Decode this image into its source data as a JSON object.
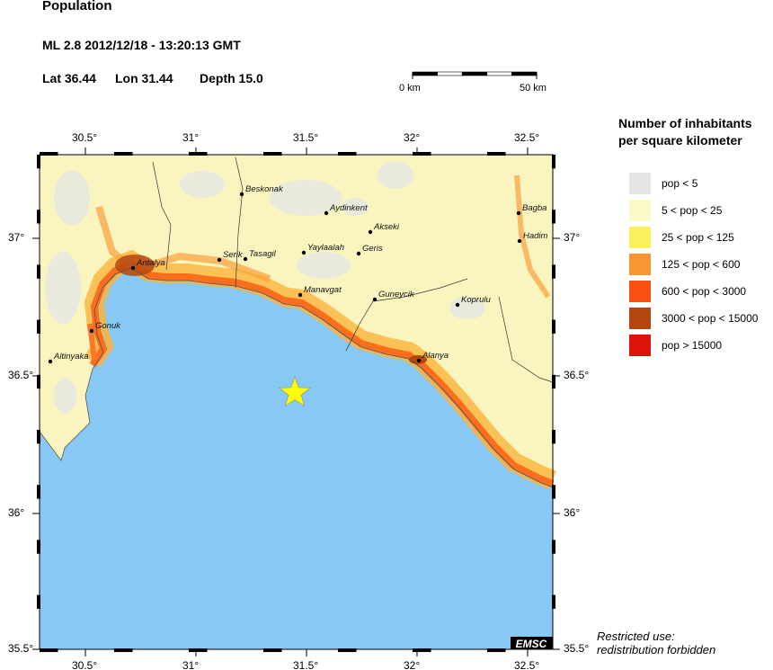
{
  "header": {
    "title": "Population",
    "event": "ML 2.8  2012/12/18 - 13:20:13 GMT",
    "lat": "Lat 36.44",
    "lon": "Lon  31.44",
    "depth": "Depth  15.0"
  },
  "scale": {
    "start": "0 km",
    "end": "50 km"
  },
  "legend": {
    "title_line1": "Number of inhabitants",
    "title_line2": "per square kilometer",
    "items": [
      {
        "label": "pop < 5",
        "color": "#e6e6e6"
      },
      {
        "label": "5 < pop < 25",
        "color": "#fafac8"
      },
      {
        "label": "25 < pop < 125",
        "color": "#faf05a"
      },
      {
        "label": "125 < pop < 600",
        "color": "#fa9632"
      },
      {
        "label": "600 < pop < 3000",
        "color": "#fa5014"
      },
      {
        "label": "3000 < pop < 15000",
        "color": "#b4460f"
      },
      {
        "label": "pop > 15000",
        "color": "#dc140a"
      }
    ]
  },
  "axes": {
    "lon_ticks": [
      "30.5°",
      "31°",
      "31.5°",
      "32°",
      "32.5°"
    ],
    "lat_ticks": [
      "37°",
      "36.5°",
      "36°",
      "35.5°"
    ]
  },
  "cities": [
    "Beskonak",
    "Aydinkent",
    "Akseki",
    "Bagba",
    "Hadim",
    "Yaylaalah",
    "Geris",
    "Serik",
    "Tasagil",
    "Antalya",
    "Manavgat",
    "Guneycik",
    "Koprulu",
    "Gonuk",
    "Altinyaka",
    "Alanya"
  ],
  "epicenter": {
    "marker": "star-icon",
    "color": "#ffff00"
  },
  "sea_color": "#87c8f5",
  "logo": "EMSC",
  "note": {
    "line1": "Restricted use:",
    "line2": "redistribution forbidden"
  }
}
